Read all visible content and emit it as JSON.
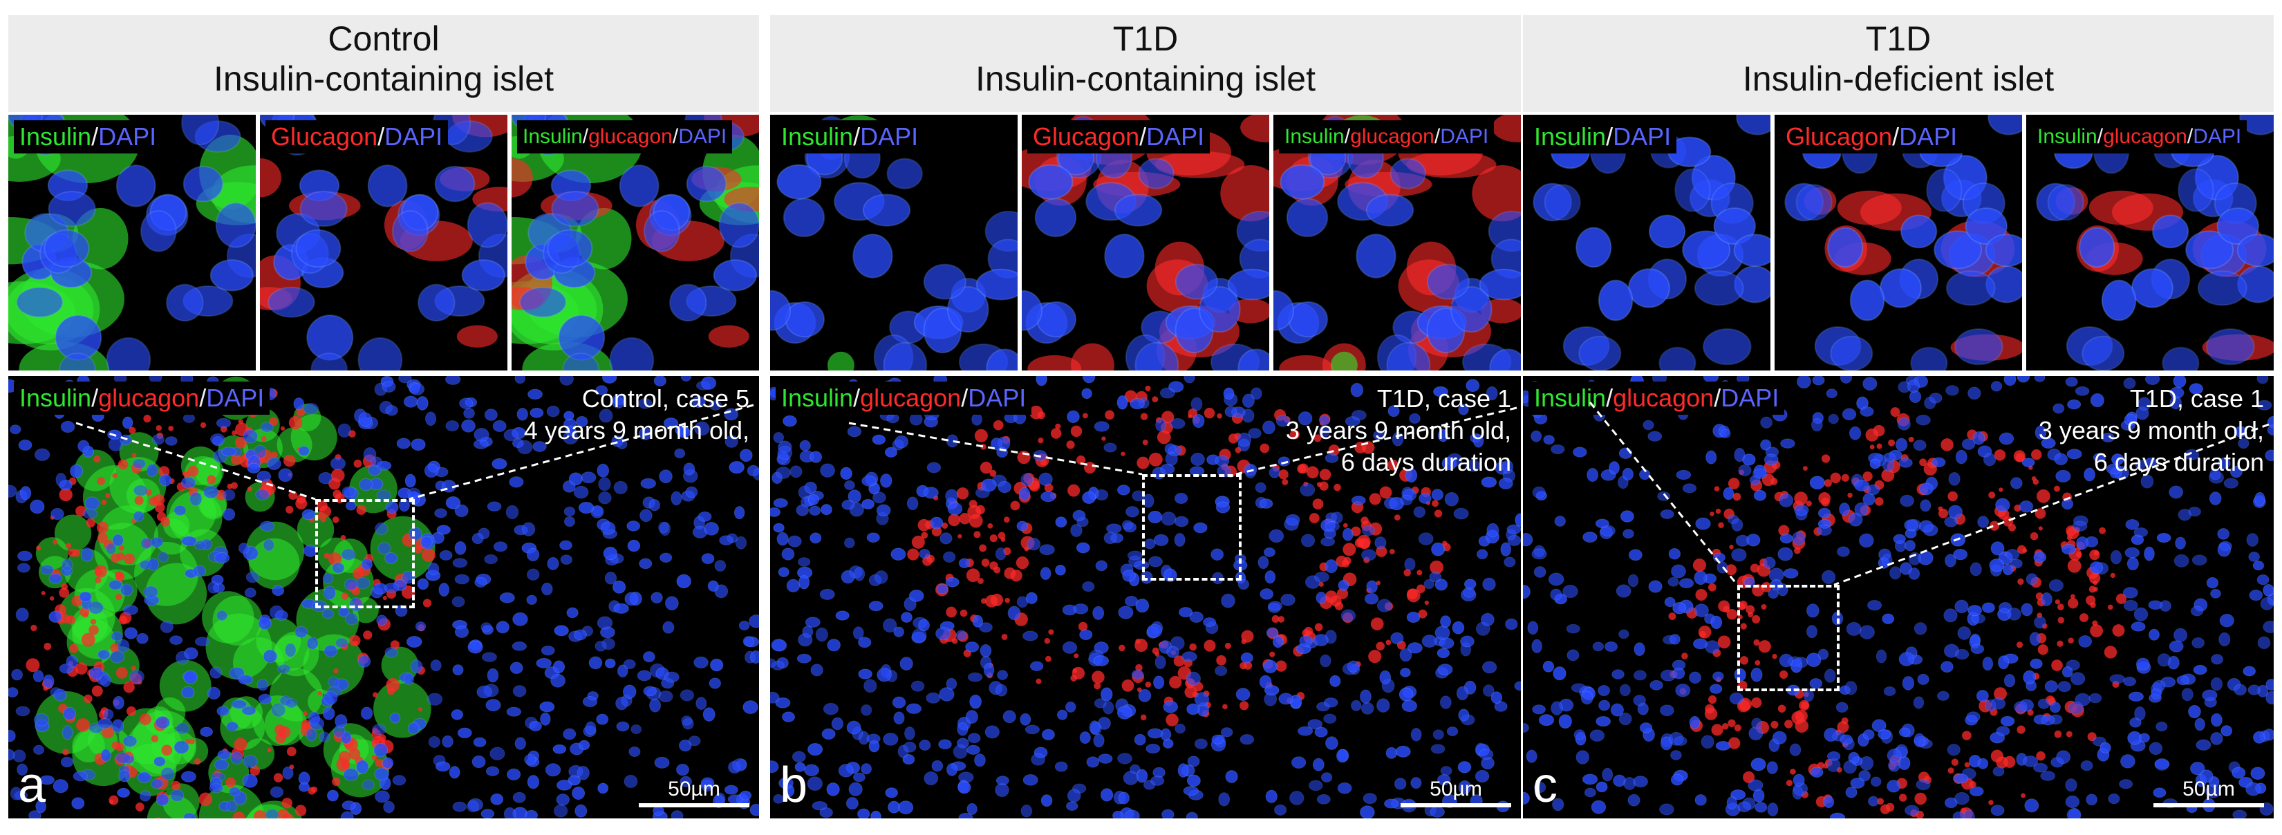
{
  "panels": [
    {
      "header": {
        "line1": "Control",
        "line2": "Insulin-containing islet"
      },
      "tiles": [
        {
          "tag": [
            {
              "t": "Insulin",
              "c": "g"
            },
            {
              "t": "/",
              "c": "w"
            },
            {
              "t": "DAPI",
              "c": "b"
            }
          ]
        },
        {
          "tag": [
            {
              "t": "Glucagon",
              "c": "r"
            },
            {
              "t": "/",
              "c": "w"
            },
            {
              "t": "DAPI",
              "c": "b"
            }
          ]
        },
        {
          "tag": [
            {
              "t": "Insulin",
              "c": "g"
            },
            {
              "t": "/",
              "c": "w"
            },
            {
              "t": "glucagon",
              "c": "r"
            },
            {
              "t": "/",
              "c": "w"
            },
            {
              "t": "DAPI",
              "c": "b"
            }
          ]
        }
      ],
      "main_tag": [
        {
          "t": "Insulin",
          "c": "g"
        },
        {
          "t": "/",
          "c": "w"
        },
        {
          "t": "glucagon",
          "c": "r"
        },
        {
          "t": "/",
          "c": "w"
        },
        {
          "t": "DAPI",
          "c": "b"
        }
      ],
      "case_lines": [
        "Control, case 5",
        "4 years 9 month old,"
      ],
      "letter": "a",
      "scale": "50µm"
    },
    {
      "header": {
        "line1": "T1D",
        "line2": "Insulin-containing islet"
      },
      "tiles": [
        {
          "tag": [
            {
              "t": "Insulin",
              "c": "g"
            },
            {
              "t": "/",
              "c": "w"
            },
            {
              "t": "DAPI",
              "c": "b"
            }
          ]
        },
        {
          "tag": [
            {
              "t": "Glucagon",
              "c": "r"
            },
            {
              "t": "/",
              "c": "w"
            },
            {
              "t": "DAPI",
              "c": "b"
            }
          ]
        },
        {
          "tag": [
            {
              "t": "Insulin",
              "c": "g"
            },
            {
              "t": "/",
              "c": "w"
            },
            {
              "t": "glucagon",
              "c": "r"
            },
            {
              "t": "/",
              "c": "w"
            },
            {
              "t": "DAPI",
              "c": "b"
            }
          ]
        }
      ],
      "main_tag": [
        {
          "t": "Insulin",
          "c": "g"
        },
        {
          "t": "/",
          "c": "w"
        },
        {
          "t": "glucagon",
          "c": "r"
        },
        {
          "t": "/",
          "c": "w"
        },
        {
          "t": "DAPI",
          "c": "b"
        }
      ],
      "case_lines": [
        "T1D, case 1",
        "3 years 9 month old,",
        "6 days duration"
      ],
      "letter": "b",
      "scale": "50µm"
    },
    {
      "header": {
        "line1": "T1D",
        "line2": "Insulin-deficient islet"
      },
      "tiles": [
        {
          "tag": [
            {
              "t": "Insulin",
              "c": "g"
            },
            {
              "t": "/",
              "c": "w"
            },
            {
              "t": "DAPI",
              "c": "b"
            }
          ]
        },
        {
          "tag": [
            {
              "t": "Glucagon",
              "c": "r"
            },
            {
              "t": "/",
              "c": "w"
            },
            {
              "t": "DAPI",
              "c": "b"
            }
          ]
        },
        {
          "tag": [
            {
              "t": "Insulin",
              "c": "g"
            },
            {
              "t": "/",
              "c": "w"
            },
            {
              "t": "glucagon",
              "c": "r"
            },
            {
              "t": "/",
              "c": "w"
            },
            {
              "t": "DAPI",
              "c": "b"
            }
          ]
        }
      ],
      "main_tag": [
        {
          "t": "Insulin",
          "c": "g"
        },
        {
          "t": "/",
          "c": "w"
        },
        {
          "t": "glucagon",
          "c": "r"
        },
        {
          "t": "/",
          "c": "w"
        },
        {
          "t": "DAPI",
          "c": "b"
        }
      ],
      "case_lines": [
        "T1D, case 1",
        "3 years 9 month old,",
        "6 days duration"
      ],
      "letter": "c",
      "scale": "50µm"
    }
  ],
  "colors": {
    "insulin": "#2fe82f",
    "glucagon": "#ff2a2a",
    "dapi": "#2a4cff",
    "background": "#000000"
  }
}
